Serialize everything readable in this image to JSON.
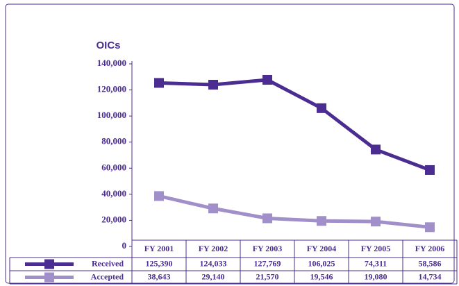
{
  "chart_data": {
    "type": "line",
    "ylabel": "OICs",
    "categories": [
      "FY 2001",
      "FY 2002",
      "FY 2003",
      "FY 2004",
      "FY 2005",
      "FY 2006"
    ],
    "series": [
      {
        "name": "Received",
        "color": "#4b2c91",
        "values": [
          125390,
          124033,
          127769,
          106025,
          74311,
          58586
        ],
        "value_labels": [
          "125,390",
          "124,033",
          "127,769",
          "106,025",
          "74,311",
          "58,586"
        ]
      },
      {
        "name": "Accepted",
        "color": "#a08fc8",
        "values": [
          38643,
          29140,
          21570,
          19546,
          19080,
          14734
        ],
        "value_labels": [
          "38,643",
          "29,140",
          "21,570",
          "19,546",
          "19,080",
          "14,734"
        ]
      }
    ],
    "ylim": [
      0,
      140000
    ],
    "yticks": [
      0,
      {
        "value": 20000,
        "label": "20,000"
      },
      {
        "value": 40000,
        "label": "40,000"
      },
      {
        "value": 60000,
        "label": "60,000"
      },
      {
        "value": 80000,
        "label": "80,000"
      },
      {
        "value": 100000,
        "label": "100,000"
      },
      {
        "value": 120000,
        "label": "120,000"
      },
      {
        "value": 140000,
        "label": "140,000"
      }
    ],
    "grid": false
  }
}
